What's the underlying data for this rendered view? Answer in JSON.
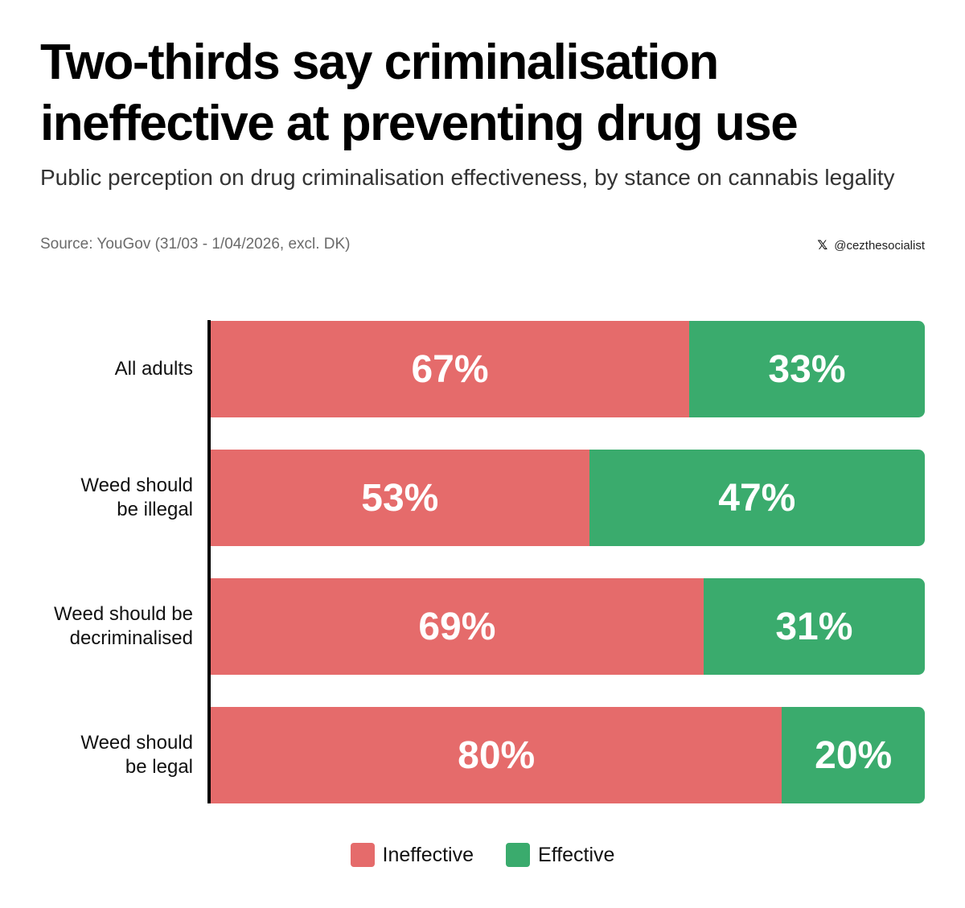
{
  "header": {
    "title": "Two-thirds say criminalisation ineffective at preventing drug use",
    "subtitle": "Public perception on drug criminalisation effectiveness, by stance on cannabis legality",
    "source": "Source: YouGov (31/03 - 1/04/2026, excl. DK)",
    "credit_icon": "x-logo-icon",
    "credit": "@cezthesocialist"
  },
  "colors": {
    "ineffective": "#e56b6b",
    "effective": "#3aab6d"
  },
  "chart_data": {
    "type": "bar",
    "orientation": "horizontal",
    "stacked": true,
    "percent": true,
    "categories": [
      "All adults",
      "Weed should\nbe illegal",
      "Weed should be\ndecriminalised",
      "Weed should\nbe legal"
    ],
    "series": [
      {
        "name": "Ineffective",
        "values": [
          67,
          53,
          69,
          80
        ],
        "labels": [
          "67%",
          "53%",
          "69%",
          "80%"
        ]
      },
      {
        "name": "Effective",
        "values": [
          33,
          47,
          31,
          20
        ],
        "labels": [
          "33%",
          "47%",
          "31%",
          "20%"
        ]
      }
    ],
    "xlim": [
      0,
      100
    ],
    "grid": false,
    "legend": "bottom-center"
  }
}
